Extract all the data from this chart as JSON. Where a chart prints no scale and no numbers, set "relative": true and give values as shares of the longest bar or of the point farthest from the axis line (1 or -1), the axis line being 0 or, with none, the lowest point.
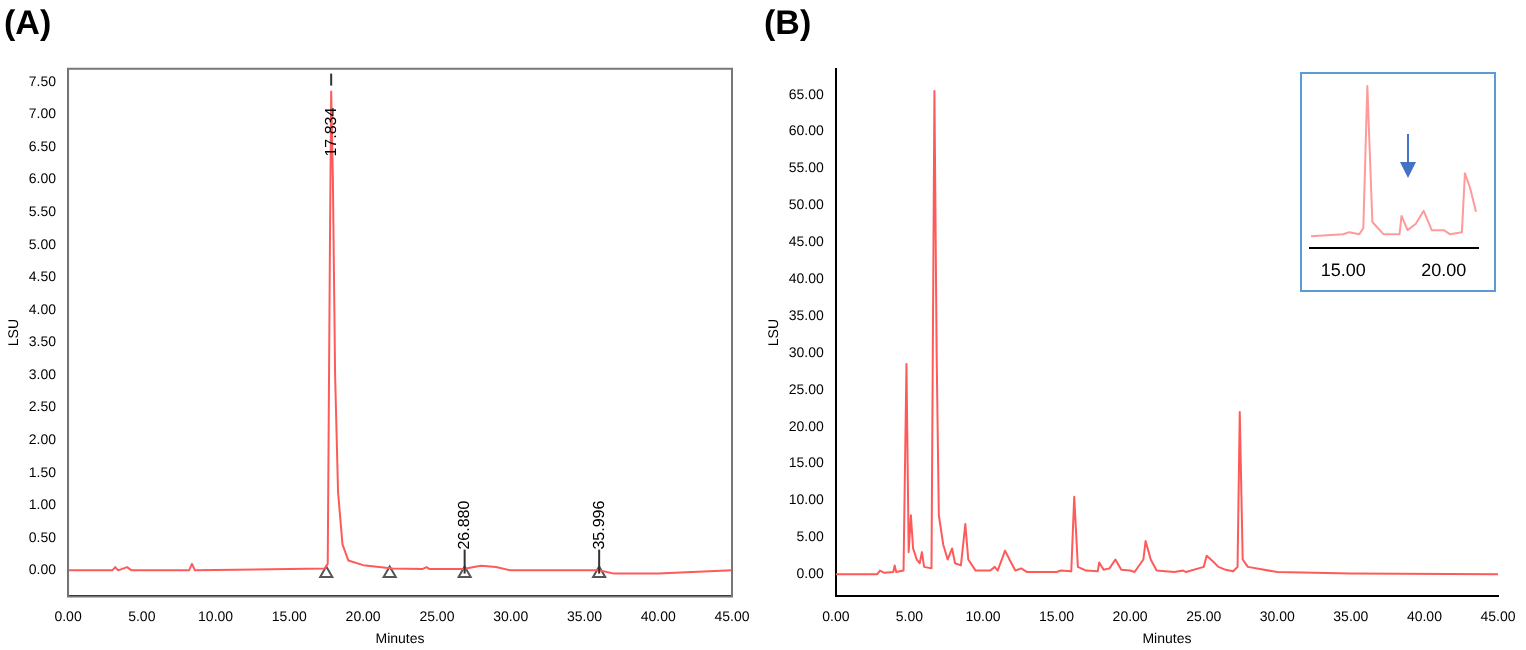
{
  "chart_data": [
    {
      "type": "line",
      "title": "(A)",
      "xlabel": "Minutes",
      "ylabel": "LSU",
      "xlim": [
        0,
        45
      ],
      "xticks": [
        {
          "value": 0,
          "label": "0.00"
        },
        {
          "value": 5,
          "label": "5.00"
        },
        {
          "value": 10,
          "label": "10.00"
        },
        {
          "value": 15,
          "label": "15.00"
        },
        {
          "value": 20,
          "label": "20.00"
        },
        {
          "value": 25,
          "label": "25.00"
        },
        {
          "value": 30,
          "label": "30.00"
        },
        {
          "value": 35,
          "label": "35.00"
        },
        {
          "value": 40,
          "label": "40.00"
        },
        {
          "value": 45,
          "label": "45.00"
        }
      ],
      "ylim": [
        -0.4,
        7.7
      ],
      "yticks": [
        {
          "value": 0,
          "label": "0.00"
        },
        {
          "value": 0.5,
          "label": "0.50"
        },
        {
          "value": 1,
          "label": "1.00"
        },
        {
          "value": 1.5,
          "label": "1.50"
        },
        {
          "value": 2,
          "label": "2.00"
        },
        {
          "value": 2.5,
          "label": "2.50"
        },
        {
          "value": 3,
          "label": "3.00"
        },
        {
          "value": 3.5,
          "label": "3.50"
        },
        {
          "value": 4,
          "label": "4.00"
        },
        {
          "value": 4.5,
          "label": "4.50"
        },
        {
          "value": 5,
          "label": "5.00"
        },
        {
          "value": 5.5,
          "label": "5.50"
        },
        {
          "value": 6,
          "label": "6.00"
        },
        {
          "value": 6.5,
          "label": "6.50"
        },
        {
          "value": 7,
          "label": "7.00"
        },
        {
          "value": 7.5,
          "label": "7.50"
        }
      ],
      "marker": "none",
      "series": [
        {
          "color": "#ff5a5a",
          "x": [
            0,
            3,
            3.2,
            3.4,
            4,
            4.3,
            8.2,
            8.4,
            8.6,
            17.4,
            17.6,
            17.75,
            17.834,
            17.95,
            18.1,
            18.3,
            18.6,
            19,
            20,
            22,
            24,
            24.3,
            24.5,
            26.8,
            27.5,
            28,
            29,
            30,
            36,
            37,
            40,
            45
          ],
          "values": [
            0,
            0,
            0.05,
            0,
            0.05,
            0,
            0,
            0.1,
            0,
            0.03,
            0.1,
            5.0,
            7.35,
            6.0,
            3.0,
            1.2,
            0.4,
            0.15,
            0.08,
            0.03,
            0.02,
            0.05,
            0.02,
            0.02,
            0.05,
            0.07,
            0.05,
            0,
            0,
            -0.05,
            -0.05,
            0
          ]
        },
        {
          "type": "scatter",
          "marker": "triangle",
          "color": "#555555",
          "x": [
            17.5,
            21.8,
            26.88,
            35.996
          ],
          "values": [
            -0.05,
            -0.05,
            -0.05,
            -0.05
          ]
        }
      ],
      "annotations": [
        {
          "text": "17.834",
          "x": 17.834,
          "y": 7.35
        },
        {
          "text": "26.880",
          "x": 26.88,
          "y": -0.05
        },
        {
          "text": "35.996",
          "x": 35.996,
          "y": -0.05
        }
      ]
    },
    {
      "type": "line",
      "title": "(B)",
      "xlabel": "Minutes",
      "ylabel": "LSU",
      "xlim": [
        0,
        45
      ],
      "xticks": [
        {
          "value": 0,
          "label": "0.00"
        },
        {
          "value": 5,
          "label": "5.00"
        },
        {
          "value": 10,
          "label": "10.00"
        },
        {
          "value": 15,
          "label": "15.00"
        },
        {
          "value": 20,
          "label": "20.00"
        },
        {
          "value": 25,
          "label": "25.00"
        },
        {
          "value": 30,
          "label": "30.00"
        },
        {
          "value": 35,
          "label": "35.00"
        },
        {
          "value": 40,
          "label": "40.00"
        },
        {
          "value": 45,
          "label": "45.00"
        }
      ],
      "ylim": [
        -3,
        68.5
      ],
      "yticks": [
        {
          "value": 0,
          "label": "0.00"
        },
        {
          "value": 5,
          "label": "5.00"
        },
        {
          "value": 10,
          "label": "10.00"
        },
        {
          "value": 15,
          "label": "15.00"
        },
        {
          "value": 20,
          "label": "20.00"
        },
        {
          "value": 25,
          "label": "25.00"
        },
        {
          "value": 30,
          "label": "30.00"
        },
        {
          "value": 35,
          "label": "35.00"
        },
        {
          "value": 40,
          "label": "40.00"
        },
        {
          "value": 45,
          "label": "45.00"
        },
        {
          "value": 50,
          "label": "50.00"
        },
        {
          "value": 55,
          "label": "55.00"
        },
        {
          "value": 60,
          "label": "60.00"
        },
        {
          "value": 65,
          "label": "65.00"
        }
      ],
      "marker": "none",
      "series": [
        {
          "color": "#ff5a5a",
          "x": [
            0,
            2.8,
            3,
            3.3,
            3.9,
            4.0,
            4.1,
            4.6,
            4.8,
            4.95,
            5.1,
            5.25,
            5.5,
            5.7,
            5.85,
            6.0,
            6.5,
            6.7,
            6.85,
            7.0,
            7.3,
            7.6,
            7.9,
            8.1,
            8.5,
            8.8,
            9.0,
            9.5,
            10.5,
            10.8,
            11.0,
            11.5,
            11.8,
            12.2,
            12.6,
            13,
            15,
            15.3,
            16.0,
            16.2,
            16.45,
            17,
            17.8,
            17.9,
            18.2,
            18.6,
            19.0,
            19.4,
            20,
            20.3,
            20.9,
            21.05,
            21.4,
            21.8,
            23,
            23.6,
            23.8,
            25.0,
            25.2,
            25.6,
            26,
            26.5,
            27.0,
            27.3,
            27.45,
            27.65,
            28,
            30,
            35,
            45
          ],
          "values": [
            0,
            0,
            0.5,
            0.2,
            0.3,
            1.2,
            0.3,
            0.5,
            28.5,
            3,
            8,
            3.5,
            2,
            1.5,
            3,
            1.0,
            0.8,
            65.5,
            30,
            8,
            4,
            2,
            3.5,
            1.5,
            1.2,
            6.8,
            2,
            0.5,
            0.5,
            1.0,
            0.5,
            3.2,
            2.0,
            0.5,
            0.8,
            0.3,
            0.3,
            0.5,
            0.4,
            10.5,
            1.0,
            0.5,
            0.4,
            1.6,
            0.6,
            0.8,
            2.0,
            0.6,
            0.5,
            0.3,
            2,
            4.5,
            2,
            0.5,
            0.3,
            0.5,
            0.3,
            1,
            2.5,
            1.8,
            1.0,
            0.6,
            0.4,
            1,
            22,
            2,
            1.0,
            0.3,
            0.1,
            0
          ]
        }
      ]
    },
    {
      "type": "line",
      "relative": true,
      "tick_labels": "x",
      "xlim": [
        13.35,
        21.7
      ],
      "xticks": [
        {
          "value": 15,
          "label": "15.00"
        },
        {
          "value": 20,
          "label": "20.00"
        }
      ],
      "marker": "none",
      "series": [
        {
          "color": "#ff9a9a",
          "x": [
            13.4,
            15.0,
            15.3,
            15.8,
            16.0,
            16.2,
            16.45,
            17,
            17.8,
            17.9,
            18.2,
            18.6,
            19.0,
            19.4,
            20.0,
            20.3,
            20.9,
            21.05,
            21.3,
            21.6
          ],
          "values": [
            0.26,
            0.27,
            0.28,
            0.27,
            0.3,
            1.0,
            0.33,
            0.27,
            0.27,
            0.36,
            0.29,
            0.32,
            0.385,
            0.29,
            0.29,
            0.27,
            0.28,
            0.57,
            0.5,
            0.38
          ]
        }
      ]
    }
  ]
}
